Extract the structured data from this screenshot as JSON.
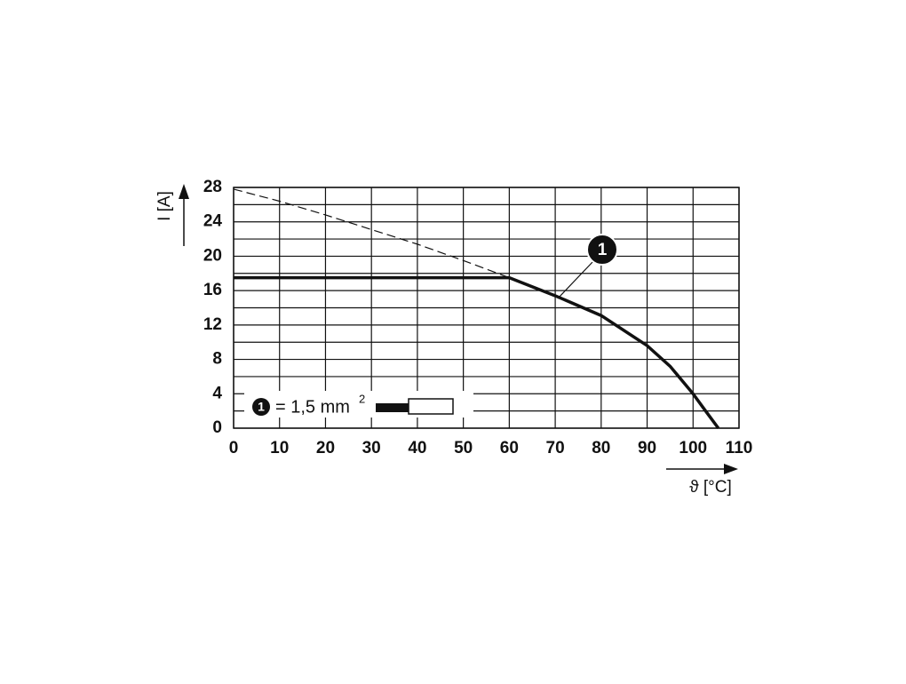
{
  "chart_data": {
    "type": "line",
    "x_label": "ϑ [°C]",
    "y_label": "I [A]",
    "xlim": [
      0,
      110
    ],
    "xticks": [
      0,
      10,
      20,
      30,
      40,
      50,
      60,
      70,
      80,
      90,
      100,
      110
    ],
    "ylim": [
      0,
      28
    ],
    "yticks": [
      0,
      4,
      8,
      12,
      16,
      20,
      24,
      28
    ],
    "yminorticks": [
      2,
      6,
      10,
      14,
      18,
      22,
      26
    ],
    "grid": true,
    "series": [
      {
        "name": "1",
        "color": "#111111",
        "dashed": false,
        "x": [
          0,
          60,
          70,
          80,
          90,
          95,
          100,
          103,
          105.5
        ],
        "values": [
          17.5,
          17.5,
          15.4,
          13.1,
          9.6,
          7.2,
          4.0,
          1.8,
          0
        ]
      },
      {
        "color": "#111111",
        "dashed": true,
        "x": [
          0,
          10,
          20,
          30,
          40,
          50,
          60
        ],
        "values": [
          27.8,
          26.4,
          24.8,
          23.1,
          21.4,
          19.5,
          17.5
        ]
      }
    ],
    "legend": {
      "text": "= 1,5 mm",
      "superscript": "2"
    }
  }
}
